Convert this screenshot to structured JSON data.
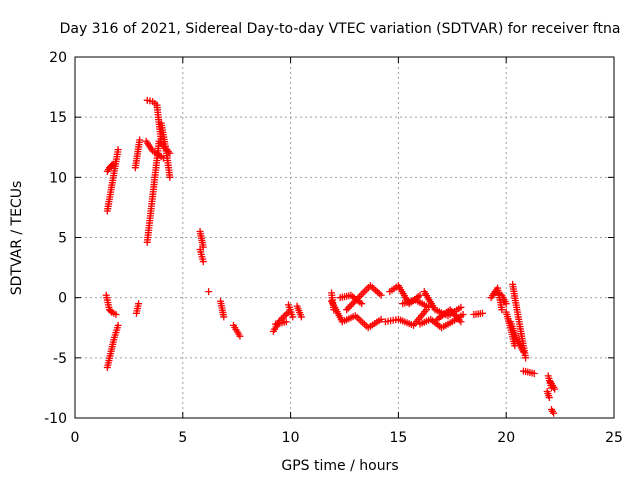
{
  "chart_data": {
    "type": "scatter",
    "title": "Day 316 of 2021, Sidereal Day-to-day VTEC variation (SDTVAR) for receiver ftna",
    "xlabel": "GPS time / hours",
    "ylabel": "SDTVAR / TECUs",
    "xlim": [
      0,
      25
    ],
    "ylim": [
      -10,
      20
    ],
    "xticks": [
      0,
      5,
      10,
      15,
      20,
      25
    ],
    "yticks": [
      -10,
      -5,
      0,
      5,
      10,
      15,
      20
    ],
    "xtick_labels": [
      "0",
      "5",
      "10",
      "15",
      "20",
      "25"
    ],
    "ytick_labels": [
      "-10",
      "-5",
      "0",
      "5",
      "10",
      "15",
      "20"
    ],
    "grid": true,
    "marker": "+",
    "color": "#ff0000",
    "segments": [
      {
        "x": [
          1.5,
          2.0
        ],
        "y": [
          7.2,
          12.3
        ]
      },
      {
        "x": [
          1.5,
          1.6,
          1.7,
          1.8
        ],
        "y": [
          10.5,
          10.8,
          11.0,
          11.1
        ]
      },
      {
        "x": [
          1.45,
          1.6,
          1.7,
          1.9
        ],
        "y": [
          0.2,
          -1.0,
          -1.2,
          -1.4
        ]
      },
      {
        "x": [
          1.5,
          1.8,
          2.0
        ],
        "y": [
          -5.8,
          -3.5,
          -2.3
        ]
      },
      {
        "x": [
          2.85,
          2.95
        ],
        "y": [
          -1.3,
          -0.5
        ]
      },
      {
        "x": [
          2.8,
          3.0
        ],
        "y": [
          10.8,
          13.1
        ]
      },
      {
        "x": [
          3.35,
          3.9,
          4.4
        ],
        "y": [
          4.6,
          13.0,
          12.0
        ]
      },
      {
        "x": [
          3.3,
          3.6,
          4.1
        ],
        "y": [
          13.0,
          12.2,
          11.6
        ]
      },
      {
        "x": [
          3.35,
          3.6,
          3.8
        ],
        "y": [
          16.4,
          16.3,
          16.0
        ]
      },
      {
        "x": [
          3.8,
          4.0
        ],
        "y": [
          16.0,
          13.0
        ]
      },
      {
        "x": [
          4.0,
          4.25,
          4.4
        ],
        "y": [
          14.5,
          12.0,
          10.0
        ]
      },
      {
        "x": [
          5.8,
          5.95
        ],
        "y": [
          5.5,
          4.2
        ]
      },
      {
        "x": [
          5.8,
          5.95
        ],
        "y": [
          4.0,
          3.0
        ]
      },
      {
        "x": [
          6.2
        ],
        "y": [
          0.5
        ]
      },
      {
        "x": [
          6.75,
          6.9
        ],
        "y": [
          -0.3,
          -1.6
        ]
      },
      {
        "x": [
          7.35,
          7.65
        ],
        "y": [
          -2.3,
          -3.2
        ]
      },
      {
        "x": [
          9.2,
          9.5,
          9.9
        ],
        "y": [
          -2.8,
          -1.9,
          -1.2
        ]
      },
      {
        "x": [
          9.3,
          9.8
        ],
        "y": [
          -2.2,
          -2.0
        ]
      },
      {
        "x": [
          9.9,
          10.1
        ],
        "y": [
          -0.6,
          -1.6
        ]
      },
      {
        "x": [
          10.3,
          10.5
        ],
        "y": [
          -0.7,
          -1.6
        ]
      },
      {
        "x": [
          11.9,
          12.4,
          13.0,
          13.6,
          14.2
        ],
        "y": [
          -0.3,
          -2.0,
          -1.5,
          -2.5,
          -1.8
        ]
      },
      {
        "x": [
          11.9,
          12.0
        ],
        "y": [
          0.4,
          -1.0
        ]
      },
      {
        "x": [
          12.6,
          13.2,
          13.7,
          14.2
        ],
        "y": [
          -1.0,
          0.1,
          1.0,
          0.2
        ]
      },
      {
        "x": [
          12.3,
          12.8,
          13.3
        ],
        "y": [
          0.0,
          0.2,
          -0.5
        ]
      },
      {
        "x": [
          14.4,
          15.0,
          15.7,
          16.3
        ],
        "y": [
          -2.0,
          -1.8,
          -2.3,
          -1.0
        ]
      },
      {
        "x": [
          14.6,
          15.0,
          15.5,
          16.0
        ],
        "y": [
          0.5,
          1.0,
          -0.5,
          0.2
        ]
      },
      {
        "x": [
          15.2,
          15.8,
          16.4
        ],
        "y": [
          -0.5,
          -0.2,
          -0.8
        ]
      },
      {
        "x": [
          16.0,
          16.5,
          17.0,
          17.5,
          18.0
        ],
        "y": [
          -2.2,
          -1.8,
          -2.5,
          -2.0,
          -1.4
        ]
      },
      {
        "x": [
          16.2,
          16.7,
          17.3,
          17.9
        ],
        "y": [
          0.5,
          -1.0,
          -1.5,
          -0.8
        ]
      },
      {
        "x": [
          16.8,
          17.4,
          17.9
        ],
        "y": [
          -1.8,
          -1.0,
          -2.0
        ]
      },
      {
        "x": [
          18.5,
          18.9
        ],
        "y": [
          -1.4,
          -1.3
        ]
      },
      {
        "x": [
          19.3,
          19.6,
          19.8
        ],
        "y": [
          0.0,
          0.8,
          -1.0
        ]
      },
      {
        "x": [
          19.5,
          19.8,
          20.0
        ],
        "y": [
          0.5,
          0.2,
          -0.5
        ]
      },
      {
        "x": [
          20.0,
          20.2,
          20.4
        ],
        "y": [
          -1.2,
          -2.5,
          -4.0
        ]
      },
      {
        "x": [
          20.3,
          20.5,
          20.7
        ],
        "y": [
          1.1,
          -1.0,
          -3.0
        ]
      },
      {
        "x": [
          20.2,
          20.5,
          20.8
        ],
        "y": [
          -2.0,
          -3.5,
          -4.5
        ]
      },
      {
        "x": [
          20.7,
          20.9
        ],
        "y": [
          -3.0,
          -5.0
        ]
      },
      {
        "x": [
          20.8,
          21.3
        ],
        "y": [
          -6.1,
          -6.3
        ]
      },
      {
        "x": [
          21.95,
          22.1
        ],
        "y": [
          -6.5,
          -7.5
        ]
      },
      {
        "x": [
          21.9,
          22.0
        ],
        "y": [
          -7.8,
          -8.3
        ]
      },
      {
        "x": [
          22.05,
          22.25
        ],
        "y": [
          -7.0,
          -7.6
        ]
      },
      {
        "x": [
          22.1,
          22.2
        ],
        "y": [
          -9.3,
          -9.6
        ]
      }
    ]
  }
}
